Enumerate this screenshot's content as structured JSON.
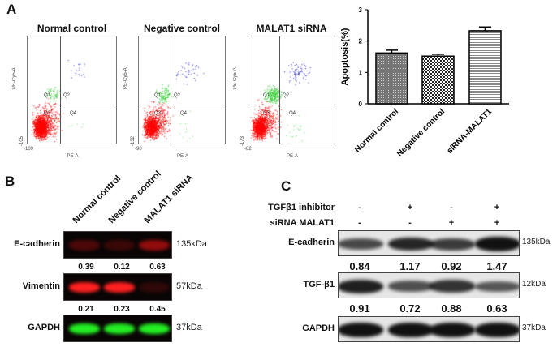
{
  "panels": {
    "a": "A",
    "b": "B",
    "c": "C"
  },
  "flow": {
    "plots": [
      {
        "title": "Normal control",
        "y_min_tick": "-105",
        "x_min_tick": "-109"
      },
      {
        "title": "Negative control",
        "y_min_tick": "-132",
        "x_min_tick": "-90"
      },
      {
        "title": "MALAT1  siRNA",
        "y_min_tick": "-173",
        "x_min_tick": "-82"
      }
    ],
    "xlabel": "PE-A",
    "ylabel": "PE-Cy5-A",
    "quadrants": [
      "Q1",
      "Q2",
      "Q3",
      "Q4"
    ],
    "colors": {
      "q3": "#ff0000",
      "q1": "#33cc33",
      "q2": "#2020cc",
      "q4": "#66dd66"
    }
  },
  "chart_data": {
    "type": "bar",
    "categories": [
      "Normal control",
      "Negative control",
      "siRNA-MALAT1"
    ],
    "values": [
      1.62,
      1.52,
      2.33
    ],
    "errors": [
      0.09,
      0.06,
      0.12
    ],
    "patterns": [
      "fine-dots",
      "checker",
      "horizontal-lines"
    ],
    "ylabel": "Apoptosis(%)",
    "ylim": [
      0,
      3
    ],
    "yticks": [
      "0",
      "1",
      "2",
      "3"
    ],
    "annotation": "**##",
    "annotation_category": "siRNA-MALAT1"
  },
  "blot_b": {
    "columns": [
      "Normal control",
      "Negative control",
      "MALAT1 siRNA"
    ],
    "rows": [
      {
        "label": "E-cadherin",
        "kda": "135kDa",
        "color": "#cc1010",
        "intensity": [
          0.35,
          0.25,
          0.7
        ],
        "values": [
          "0.39",
          "0.12",
          "0.63"
        ]
      },
      {
        "label": "Vimentin",
        "kda": "57kDa",
        "color": "#ff2020",
        "intensity": [
          1,
          1,
          0.15
        ],
        "values": [
          "0.21",
          "0.23",
          "0.45"
        ]
      },
      {
        "label": "GAPDH",
        "kda": "37kDa",
        "color": "#22ee22",
        "intensity": [
          1,
          1,
          1
        ],
        "values": []
      }
    ]
  },
  "blot_c": {
    "treatments": [
      {
        "label": "TGFβ1 inhibitor",
        "signs": [
          "-",
          "+",
          "-",
          "+"
        ]
      },
      {
        "label": "siRNA MALAT1",
        "signs": [
          "-",
          "-",
          "+",
          "+"
        ]
      }
    ],
    "rows": [
      {
        "label": "E-cadherin",
        "kda": "135kDa",
        "intensity": [
          0.6,
          0.85,
          0.7,
          1
        ],
        "values": [
          "0.84",
          "1.17",
          "0.92",
          "1.47"
        ]
      },
      {
        "label": "TGF-β1",
        "kda": "12kDa",
        "intensity": [
          0.9,
          0.55,
          0.75,
          0.5
        ],
        "values": [
          "0.91",
          "0.72",
          "0.88",
          "0.63"
        ]
      },
      {
        "label": "GAPDH",
        "kda": "37kDa",
        "intensity": [
          1,
          1,
          1,
          1
        ],
        "values": []
      }
    ]
  }
}
